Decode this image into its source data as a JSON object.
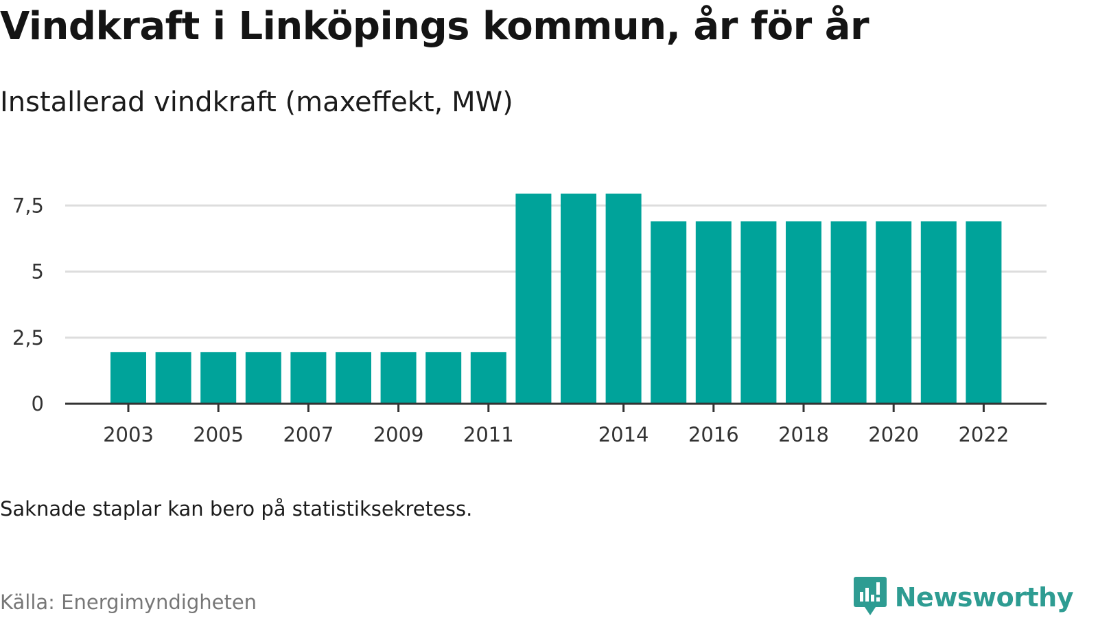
{
  "header": {
    "title": "Vindkraft i Linköpings kommun, år för år",
    "subtitle": "Installerad vindkraft (maxeffekt, MW)"
  },
  "footer": {
    "note": "Saknade staplar kan bero på statistiksekretess.",
    "source": "Källa: Energimyndigheten",
    "brand": "Newsworthy"
  },
  "colors": {
    "bar": "#00a39a",
    "grid": "#dddddd",
    "axis": "#333333",
    "brand": "#2e9c92"
  },
  "chart_data": {
    "type": "bar",
    "title": "Vindkraft i Linköpings kommun, år för år",
    "subtitle": "Installerad vindkraft (maxeffekt, MW)",
    "xlabel": "",
    "ylabel": "",
    "categories": [
      "2003",
      "2004",
      "2005",
      "2006",
      "2007",
      "2008",
      "2009",
      "2010",
      "2011",
      "2012",
      "2013",
      "2014",
      "2015",
      "2016",
      "2017",
      "2018",
      "2019",
      "2020",
      "2021",
      "2022"
    ],
    "values": [
      1.95,
      1.95,
      1.95,
      1.95,
      1.95,
      1.95,
      1.95,
      1.95,
      1.95,
      7.95,
      7.95,
      7.95,
      6.9,
      6.9,
      6.9,
      6.9,
      6.9,
      6.9,
      6.9,
      6.9
    ],
    "x_tick_labels": [
      "2003",
      "2005",
      "2007",
      "2009",
      "2011",
      "2014",
      "2016",
      "2018",
      "2020",
      "2022"
    ],
    "y_ticks": [
      0,
      2.5,
      5,
      7.5
    ],
    "y_tick_labels": [
      "0",
      "2,5",
      "5",
      "7,5"
    ],
    "ylim": [
      0,
      8
    ],
    "grid": true,
    "legend": "none"
  }
}
